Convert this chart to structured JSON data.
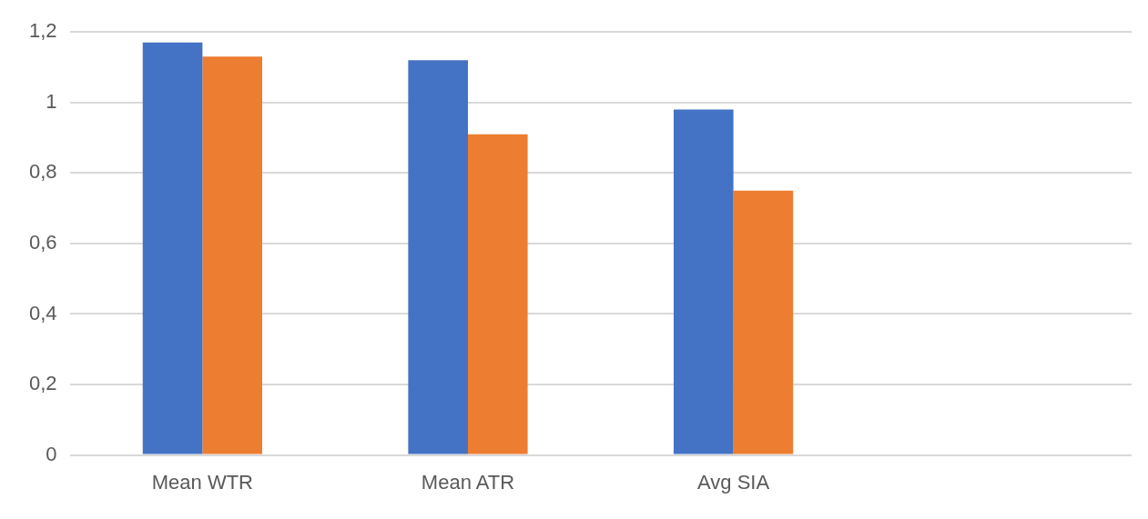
{
  "chart_data": {
    "type": "bar",
    "categories": [
      "Mean WTR",
      "Mean ATR",
      "Avg SIA",
      null
    ],
    "series": [
      {
        "color": "#4472c4",
        "values": [
          1.17,
          1.12,
          0.98,
          null
        ]
      },
      {
        "color": "#ed7d31",
        "values": [
          1.13,
          0.91,
          0.75,
          null
        ]
      }
    ],
    "ylim": [
      0,
      1.2
    ],
    "yticks": [
      0,
      {
        "value": 0.2,
        "label": "0,2"
      },
      {
        "value": 0.4,
        "label": "0,4"
      },
      {
        "value": 0.6,
        "label": "0,6"
      },
      {
        "value": 0.8,
        "label": "0,8"
      },
      1,
      {
        "value": 1.2,
        "label": "1,2"
      }
    ],
    "grid": "y",
    "legend": false
  }
}
